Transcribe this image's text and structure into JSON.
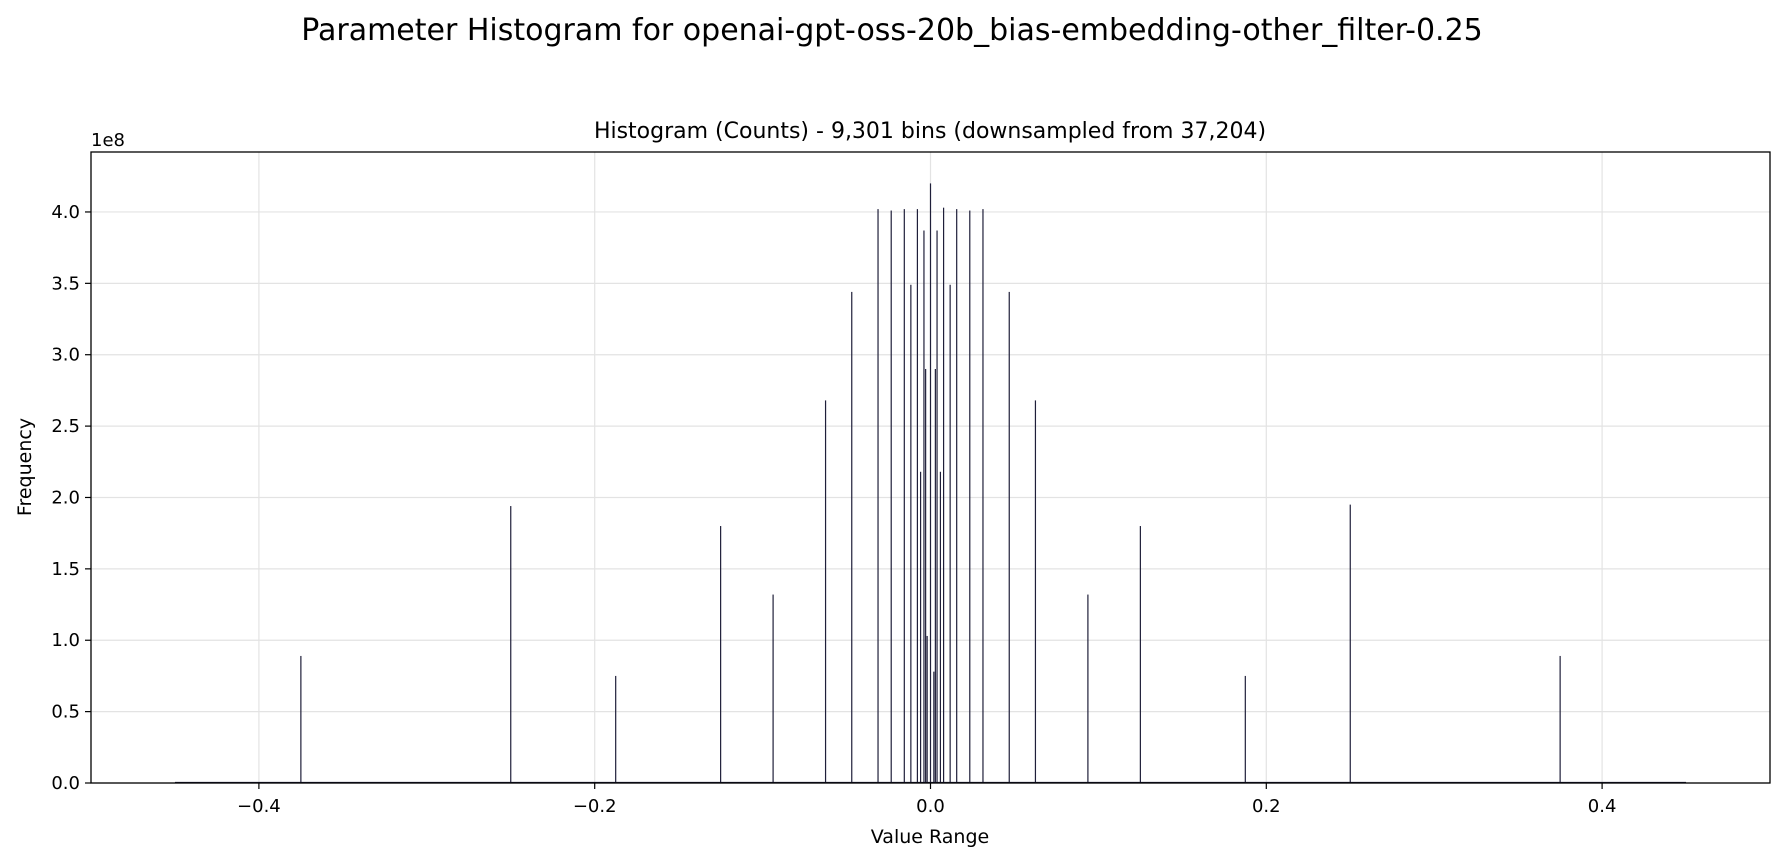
{
  "figure": {
    "suptitle": "Parameter Histogram for openai-gpt-oss-20b_bias-embedding-other_filter-0.25"
  },
  "chart_data": {
    "type": "bar",
    "title": "Histogram (Counts) - 9,301 bins (downsampled from 37,204)",
    "xlabel": "Value Range",
    "ylabel": "Frequency",
    "y_scale_label": "1e8",
    "y_multiplier": 100000000,
    "xlim": [
      -0.5,
      0.5
    ],
    "ylim": [
      0,
      4.42
    ],
    "grid": true,
    "bar_color": "#1f1f3a",
    "xticks": [
      {
        "value": -0.4,
        "label": "−0.4"
      },
      {
        "value": -0.2,
        "label": "−0.2"
      },
      {
        "value": 0.0,
        "label": "0.0"
      },
      {
        "value": 0.2,
        "label": "0.2"
      },
      {
        "value": 0.4,
        "label": "0.4"
      }
    ],
    "yticks": [
      {
        "value": 0.0,
        "label": "0.0"
      },
      {
        "value": 0.5,
        "label": "0.5"
      },
      {
        "value": 1.0,
        "label": "1.0"
      },
      {
        "value": 1.5,
        "label": "1.5"
      },
      {
        "value": 2.0,
        "label": "2.0"
      },
      {
        "value": 2.5,
        "label": "2.5"
      },
      {
        "value": 3.0,
        "label": "3.0"
      },
      {
        "value": 3.5,
        "label": "3.5"
      },
      {
        "value": 4.0,
        "label": "4.0"
      }
    ],
    "bars": [
      {
        "x": -0.375,
        "y": 0.89
      },
      {
        "x": -0.25,
        "y": 1.94
      },
      {
        "x": -0.1875,
        "y": 0.75
      },
      {
        "x": -0.125,
        "y": 1.8
      },
      {
        "x": -0.09375,
        "y": 1.32
      },
      {
        "x": -0.0625,
        "y": 2.68
      },
      {
        "x": -0.0469,
        "y": 3.44
      },
      {
        "x": -0.03125,
        "y": 4.02
      },
      {
        "x": -0.0234,
        "y": 4.01
      },
      {
        "x": -0.0156,
        "y": 4.02
      },
      {
        "x": -0.0117,
        "y": 3.49
      },
      {
        "x": -0.0078,
        "y": 4.02
      },
      {
        "x": -0.0059,
        "y": 2.18
      },
      {
        "x": -0.0039,
        "y": 3.87
      },
      {
        "x": -0.0029,
        "y": 2.9
      },
      {
        "x": -0.002,
        "y": 1.03
      },
      {
        "x": 0.0,
        "y": 4.2
      },
      {
        "x": 0.002,
        "y": 0.78
      },
      {
        "x": 0.0029,
        "y": 2.9
      },
      {
        "x": 0.0039,
        "y": 3.87
      },
      {
        "x": 0.0059,
        "y": 2.18
      },
      {
        "x": 0.0078,
        "y": 4.03
      },
      {
        "x": 0.0117,
        "y": 3.49
      },
      {
        "x": 0.0156,
        "y": 4.02
      },
      {
        "x": 0.0234,
        "y": 4.01
      },
      {
        "x": 0.03125,
        "y": 4.02
      },
      {
        "x": 0.0469,
        "y": 3.44
      },
      {
        "x": 0.0625,
        "y": 2.68
      },
      {
        "x": 0.09375,
        "y": 1.32
      },
      {
        "x": 0.125,
        "y": 1.8
      },
      {
        "x": 0.1875,
        "y": 0.75
      },
      {
        "x": 0.25,
        "y": 1.95
      },
      {
        "x": 0.375,
        "y": 0.89
      }
    ]
  }
}
